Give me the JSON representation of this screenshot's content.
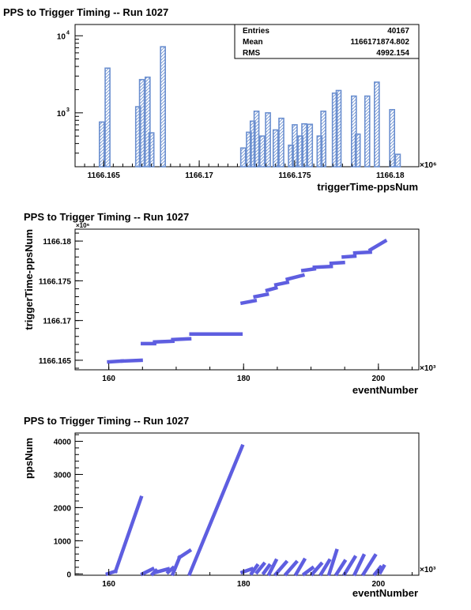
{
  "chart_data": [
    {
      "type": "bar",
      "title": "PPS to Trigger Timing -- Run 1027",
      "xlabel": "triggerTime-ppsNum",
      "ylabel": "",
      "x_multiplier": "×10⁶",
      "x_ticks": [
        "1166.165",
        "1166.17",
        "1166.175",
        "1166.18"
      ],
      "x_tick_values": [
        1166.165,
        1166.17,
        1166.175,
        1166.18
      ],
      "xlim": [
        1166.1635,
        1166.1815
      ],
      "yscale": "log",
      "ylim": [
        200,
        14000
      ],
      "y_ticks": [
        {
          "base": "10",
          "exp": "3",
          "value": 1000
        },
        {
          "base": "10",
          "exp": "4",
          "value": 10000
        }
      ],
      "bin_width": 0.00025,
      "bins": [
        {
          "x": 1166.1649,
          "y": 760
        },
        {
          "x": 1166.1652,
          "y": 3800
        },
        {
          "x": 1166.1668,
          "y": 1200
        },
        {
          "x": 1166.167,
          "y": 2700
        },
        {
          "x": 1166.1673,
          "y": 2900
        },
        {
          "x": 1166.1675,
          "y": 550
        },
        {
          "x": 1166.1681,
          "y": 7200
        },
        {
          "x": 1166.1723,
          "y": 350
        },
        {
          "x": 1166.1726,
          "y": 560
        },
        {
          "x": 1166.1728,
          "y": 780
        },
        {
          "x": 1166.173,
          "y": 1050
        },
        {
          "x": 1166.1733,
          "y": 500
        },
        {
          "x": 1166.1736,
          "y": 1000
        },
        {
          "x": 1166.174,
          "y": 600
        },
        {
          "x": 1166.1743,
          "y": 850
        },
        {
          "x": 1166.1748,
          "y": 380
        },
        {
          "x": 1166.175,
          "y": 700
        },
        {
          "x": 1166.1753,
          "y": 500
        },
        {
          "x": 1166.1755,
          "y": 720
        },
        {
          "x": 1166.1758,
          "y": 710
        },
        {
          "x": 1166.1763,
          "y": 500
        },
        {
          "x": 1166.1765,
          "y": 1050
        },
        {
          "x": 1166.1771,
          "y": 1800
        },
        {
          "x": 1166.1773,
          "y": 1950
        },
        {
          "x": 1166.1781,
          "y": 1650
        },
        {
          "x": 1166.1783,
          "y": 530
        },
        {
          "x": 1166.1788,
          "y": 1650
        },
        {
          "x": 1166.1793,
          "y": 2500
        },
        {
          "x": 1166.1801,
          "y": 1100
        },
        {
          "x": 1166.1804,
          "y": 290
        }
      ],
      "stats": [
        {
          "label": "Entries",
          "value": "40167"
        },
        {
          "label": "Mean",
          "value": "1166171874.802"
        },
        {
          "label": "RMS",
          "value": "4992.154"
        }
      ],
      "color": "#6b8fcf"
    },
    {
      "type": "scatter",
      "title": "PPS to Trigger Timing -- Run 1027",
      "xlabel": "eventNumber",
      "ylabel": "triggerTime-ppsNum",
      "x_multiplier": "×10³",
      "y_multiplier": "×10⁶",
      "xlim": [
        155,
        206
      ],
      "ylim": [
        1166.1638,
        1166.1815
      ],
      "x_ticks": [
        "160",
        "180",
        "200"
      ],
      "x_tick_values": [
        160,
        180,
        200
      ],
      "y_ticks": [
        "1166.165",
        "1166.17",
        "1166.175",
        "1166.18"
      ],
      "y_tick_values": [
        1166.165,
        1166.17,
        1166.175,
        1166.18
      ],
      "segments": [
        {
          "x0": 160.0,
          "x1": 162.0,
          "y0": 1166.1648,
          "y1": 1166.1649
        },
        {
          "x0": 162.0,
          "x1": 164.8,
          "y0": 1166.1649,
          "y1": 1166.165
        },
        {
          "x0": 165.0,
          "x1": 166.8,
          "y0": 1166.1671,
          "y1": 1166.1671
        },
        {
          "x0": 166.8,
          "x1": 169.5,
          "y0": 1166.1673,
          "y1": 1166.1674
        },
        {
          "x0": 169.5,
          "x1": 172.0,
          "y0": 1166.1676,
          "y1": 1166.1677
        },
        {
          "x0": 172.2,
          "x1": 179.6,
          "y0": 1166.1683,
          "y1": 1166.1683
        },
        {
          "x0": 179.8,
          "x1": 181.7,
          "y0": 1166.1722,
          "y1": 1166.1725
        },
        {
          "x0": 181.7,
          "x1": 183.5,
          "y0": 1166.173,
          "y1": 1166.1733
        },
        {
          "x0": 183.5,
          "x1": 184.8,
          "y0": 1166.1738,
          "y1": 1166.1741
        },
        {
          "x0": 184.8,
          "x1": 186.5,
          "y0": 1166.1745,
          "y1": 1166.1748
        },
        {
          "x0": 186.5,
          "x1": 188.8,
          "y0": 1166.1752,
          "y1": 1166.1757
        },
        {
          "x0": 188.8,
          "x1": 190.5,
          "y0": 1166.1763,
          "y1": 1166.1765
        },
        {
          "x0": 190.5,
          "x1": 193.0,
          "y0": 1166.1767,
          "y1": 1166.1768
        },
        {
          "x0": 193.0,
          "x1": 194.8,
          "y0": 1166.1772,
          "y1": 1166.1773
        },
        {
          "x0": 194.8,
          "x1": 196.5,
          "y0": 1166.178,
          "y1": 1166.1781
        },
        {
          "x0": 196.5,
          "x1": 198.8,
          "y0": 1166.1785,
          "y1": 1166.1786
        },
        {
          "x0": 198.8,
          "x1": 201.0,
          "y0": 1166.1789,
          "y1": 1166.18
        }
      ],
      "color": "#5e5ee0"
    },
    {
      "type": "scatter",
      "title": "PPS to Trigger Timing -- Run 1027",
      "xlabel": "eventNumber",
      "ylabel": "ppsNum",
      "x_multiplier": "×10³",
      "xlim": [
        155,
        206
      ],
      "ylim": [
        -40,
        4250
      ],
      "x_ticks": [
        "160",
        "180",
        "200"
      ],
      "x_tick_values": [
        160,
        180,
        200
      ],
      "y_ticks": [
        "0",
        "1000",
        "2000",
        "3000",
        "4000"
      ],
      "y_tick_values": [
        0,
        1000,
        2000,
        3000,
        4000
      ],
      "segments": [
        {
          "x0": 159.8,
          "x1": 161.0,
          "y0": 0,
          "y1": 80
        },
        {
          "x0": 161.0,
          "x1": 164.8,
          "y0": 80,
          "y1": 2300
        },
        {
          "x0": 165.0,
          "x1": 166.5,
          "y0": 0,
          "y1": 150
        },
        {
          "x0": 166.5,
          "x1": 167.0,
          "y0": 0,
          "y1": 100
        },
        {
          "x0": 167.0,
          "x1": 168.8,
          "y0": 50,
          "y1": 150
        },
        {
          "x0": 168.8,
          "x1": 169.5,
          "y0": 50,
          "y1": 180
        },
        {
          "x0": 169.5,
          "x1": 170.5,
          "y0": 0,
          "y1": 500
        },
        {
          "x0": 170.5,
          "x1": 172.0,
          "y0": 500,
          "y1": 700
        },
        {
          "x0": 172.0,
          "x1": 179.8,
          "y0": 0,
          "y1": 3850
        },
        {
          "x0": 179.8,
          "x1": 181.2,
          "y0": 50,
          "y1": 150
        },
        {
          "x0": 181.2,
          "x1": 182.0,
          "y0": 20,
          "y1": 250
        },
        {
          "x0": 182.0,
          "x1": 183.0,
          "y0": 50,
          "y1": 300
        },
        {
          "x0": 183.0,
          "x1": 183.8,
          "y0": 30,
          "y1": 250
        },
        {
          "x0": 183.8,
          "x1": 184.8,
          "y0": 0,
          "y1": 400
        },
        {
          "x0": 184.8,
          "x1": 186.3,
          "y0": 0,
          "y1": 350
        },
        {
          "x0": 186.3,
          "x1": 187.8,
          "y0": 0,
          "y1": 350
        },
        {
          "x0": 187.8,
          "x1": 189.0,
          "y0": 0,
          "y1": 420
        },
        {
          "x0": 189.0,
          "x1": 190.2,
          "y0": 0,
          "y1": 180
        },
        {
          "x0": 190.2,
          "x1": 191.5,
          "y0": 0,
          "y1": 300
        },
        {
          "x0": 191.5,
          "x1": 192.7,
          "y0": 0,
          "y1": 400
        },
        {
          "x0": 192.7,
          "x1": 193.8,
          "y0": 0,
          "y1": 700
        },
        {
          "x0": 193.8,
          "x1": 195.0,
          "y0": 0,
          "y1": 380
        },
        {
          "x0": 195.0,
          "x1": 196.5,
          "y0": 0,
          "y1": 500
        },
        {
          "x0": 196.5,
          "x1": 197.8,
          "y0": 0,
          "y1": 550
        },
        {
          "x0": 197.8,
          "x1": 199.5,
          "y0": 0,
          "y1": 550
        },
        {
          "x0": 199.5,
          "x1": 200.3,
          "y0": 0,
          "y1": 200
        },
        {
          "x0": 200.3,
          "x1": 200.8,
          "y0": 50,
          "y1": 230
        }
      ],
      "color": "#5e5ee0"
    }
  ]
}
